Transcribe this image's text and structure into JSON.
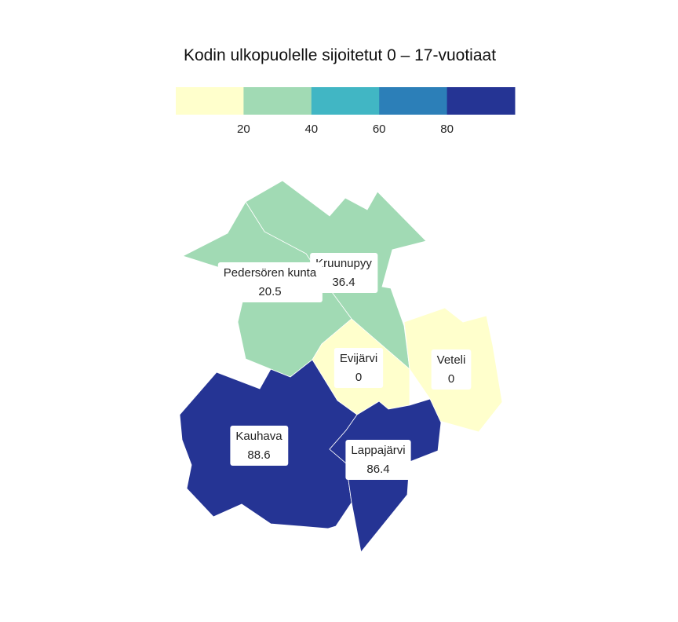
{
  "title": "Kodin ulkopuolelle sijoitetut 0 – 17-vuotiaat",
  "legend": {
    "bins": [
      {
        "min": 0,
        "max": 20,
        "color": "#ffffcc"
      },
      {
        "min": 20,
        "max": 40,
        "color": "#a1dab4"
      },
      {
        "min": 40,
        "max": 60,
        "color": "#41b6c4"
      },
      {
        "min": 60,
        "max": 80,
        "color": "#2c7fb8"
      },
      {
        "min": 80,
        "max": 100,
        "color": "#253494"
      }
    ],
    "tick_labels": [
      "20",
      "40",
      "60",
      "80"
    ]
  },
  "regions": [
    {
      "name": "Kruunupyy",
      "value": "36.4",
      "color": "#a1dab4"
    },
    {
      "name": "Pedersören kunta",
      "value": "20.5",
      "color": "#a1dab4"
    },
    {
      "name": "Evijärvi",
      "value": "0",
      "color": "#ffffcc"
    },
    {
      "name": "Veteli",
      "value": "0",
      "color": "#ffffcc"
    },
    {
      "name": "Kauhava",
      "value": "88.6",
      "color": "#253494"
    },
    {
      "name": "Lappajärvi",
      "value": "86.4",
      "color": "#253494"
    }
  ]
}
